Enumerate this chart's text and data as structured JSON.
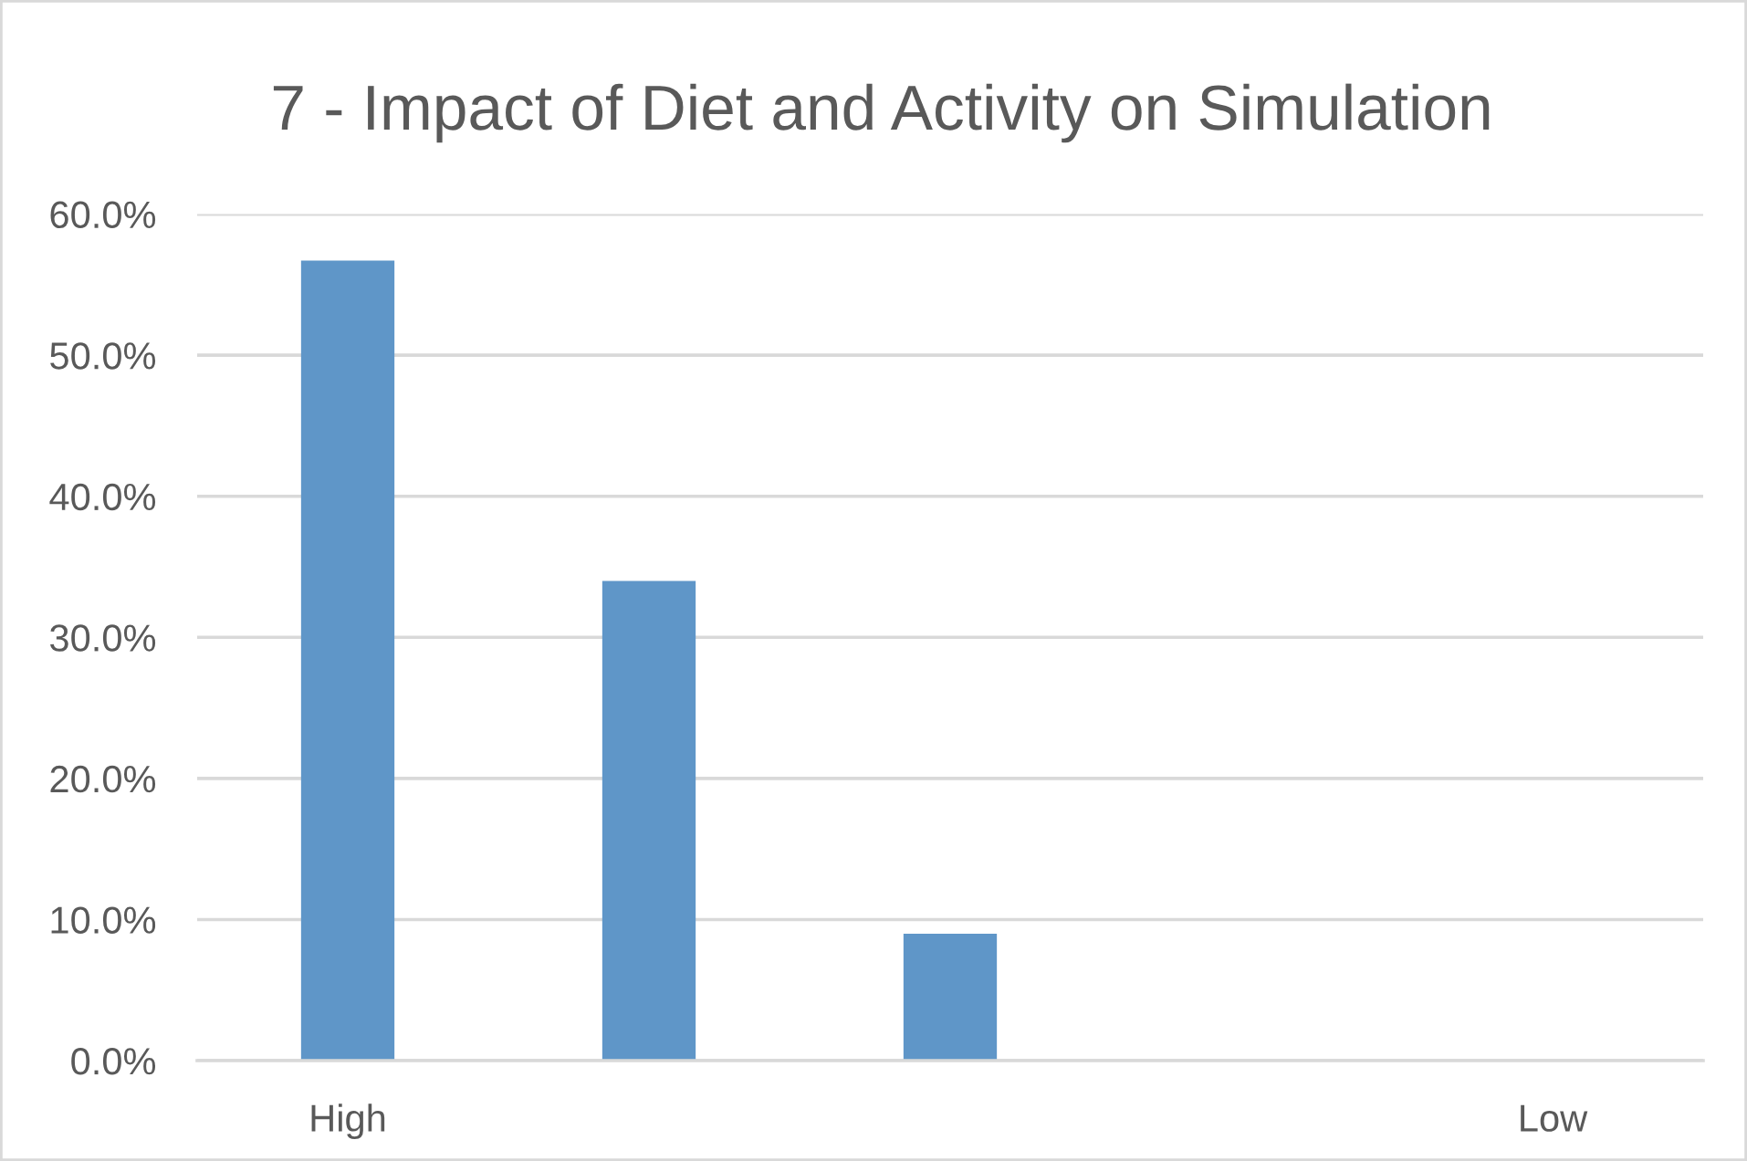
{
  "chart_data": {
    "type": "bar",
    "title": "7 - Impact of Diet and Activity on Simulation",
    "categories": [
      "High",
      null,
      null,
      null,
      "Low"
    ],
    "values": [
      56.7,
      34.0,
      9.0,
      0,
      0
    ],
    "color": "#5f96c8",
    "ylim": [
      0,
      60
    ],
    "yticks": [
      {
        "value": 0,
        "label": "0.0%"
      },
      {
        "value": 10,
        "label": "10.0%"
      },
      {
        "value": 20,
        "label": "20.0%"
      },
      {
        "value": 30,
        "label": "30.0%"
      },
      {
        "value": 40,
        "label": "40.0%"
      },
      {
        "value": 50,
        "label": "50.0%"
      },
      {
        "value": 60,
        "label": "60.0%"
      }
    ],
    "grid": "y"
  }
}
